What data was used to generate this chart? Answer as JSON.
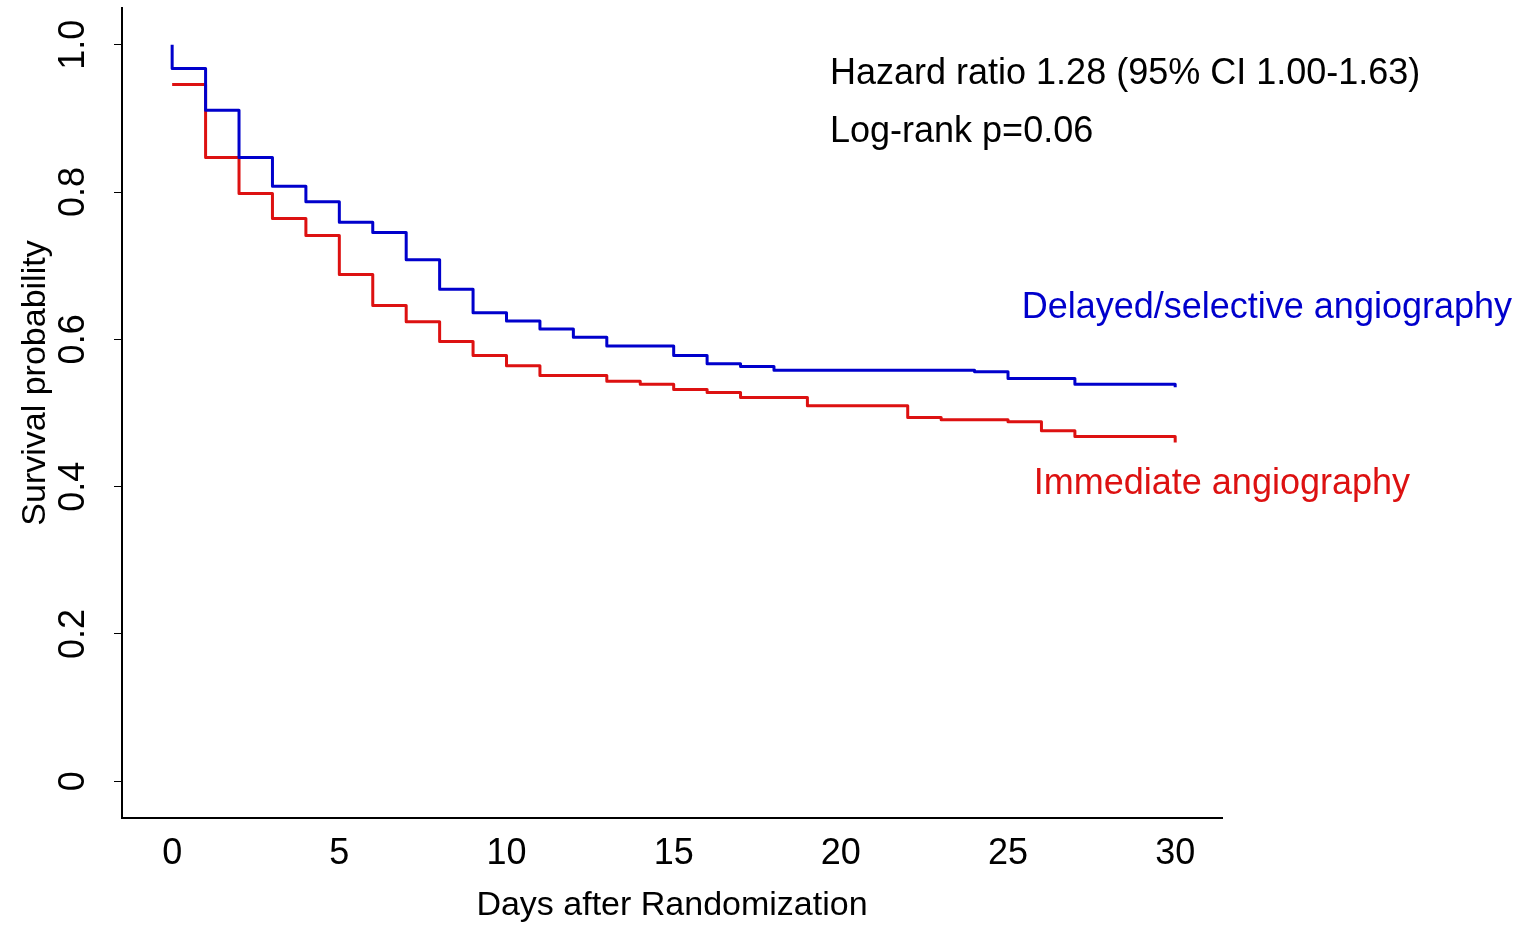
{
  "chart_data": {
    "type": "step",
    "xlabel": "Days after Randomization",
    "ylabel": "Survival probability",
    "annotations": [
      "Hazard ratio 1.28 (95% CI 1.00-1.63)",
      "Log-rank p=0.06"
    ],
    "xlim": [
      -1.5,
      31.4
    ],
    "xticks": [
      0,
      5,
      10,
      15,
      20,
      25,
      30
    ],
    "ylim": [
      -0.05,
      1.05
    ],
    "yticks": [
      0,
      0.2,
      0.4,
      0.6,
      0.8,
      {
        "value": 1,
        "label": "1.0"
      }
    ],
    "grid": false,
    "legend": false,
    "series": [
      {
        "name": "Delayed/selective angiography",
        "color": "#0000cc",
        "x": [
          0,
          0,
          1,
          2,
          3,
          4,
          5,
          6,
          7,
          8,
          9,
          10,
          11,
          12,
          13,
          15,
          16,
          17,
          18,
          24,
          25,
          27,
          30
        ],
        "values": [
          1.0,
          0.968,
          0.911,
          0.847,
          0.808,
          0.787,
          0.759,
          0.745,
          0.708,
          0.668,
          0.636,
          0.625,
          0.614,
          0.603,
          0.591,
          0.578,
          0.567,
          0.563,
          0.558,
          0.556,
          0.547,
          0.539,
          0.535
        ]
      },
      {
        "name": "Immediate angiography",
        "color": "#dd1111",
        "x": [
          0,
          1,
          2,
          3,
          4,
          5,
          6,
          7,
          8,
          9,
          10,
          11,
          13,
          14,
          15,
          16,
          17,
          19,
          22,
          23,
          25,
          26,
          27,
          30
        ],
        "values": [
          0.946,
          0.847,
          0.798,
          0.764,
          0.741,
          0.688,
          0.646,
          0.624,
          0.597,
          0.578,
          0.564,
          0.551,
          0.543,
          0.539,
          0.532,
          0.528,
          0.521,
          0.51,
          0.494,
          0.491,
          0.488,
          0.476,
          0.468,
          0.46
        ]
      }
    ]
  }
}
